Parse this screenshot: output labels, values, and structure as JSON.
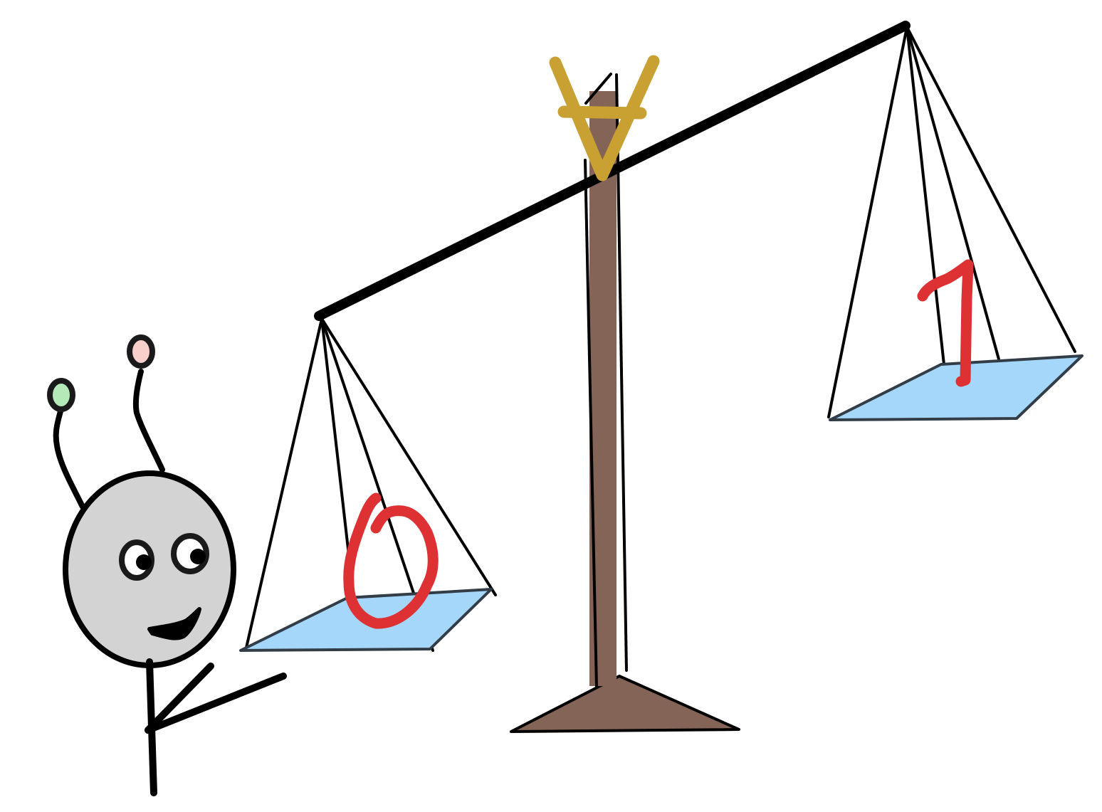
{
  "scene": {
    "left_pan_label": "0",
    "right_pan_label": "1",
    "scale_tilt": "left-pan-lower"
  },
  "colors": {
    "background": "#ffffff",
    "pole": "#836456",
    "base": "#836456",
    "pivot_symbol": "#c9a032",
    "pan_fill": "#a5d7fb",
    "pan_edge": "#333d47",
    "label_color": "#dd3134",
    "outline": "#000000",
    "alien_head": "#d3d3d3",
    "alien_antenna_left_tip": "#b4eab8",
    "alien_antenna_right_tip": "#f8cfcb"
  },
  "icons": {
    "pivot": "forall-symbol",
    "character": "alien-character"
  }
}
